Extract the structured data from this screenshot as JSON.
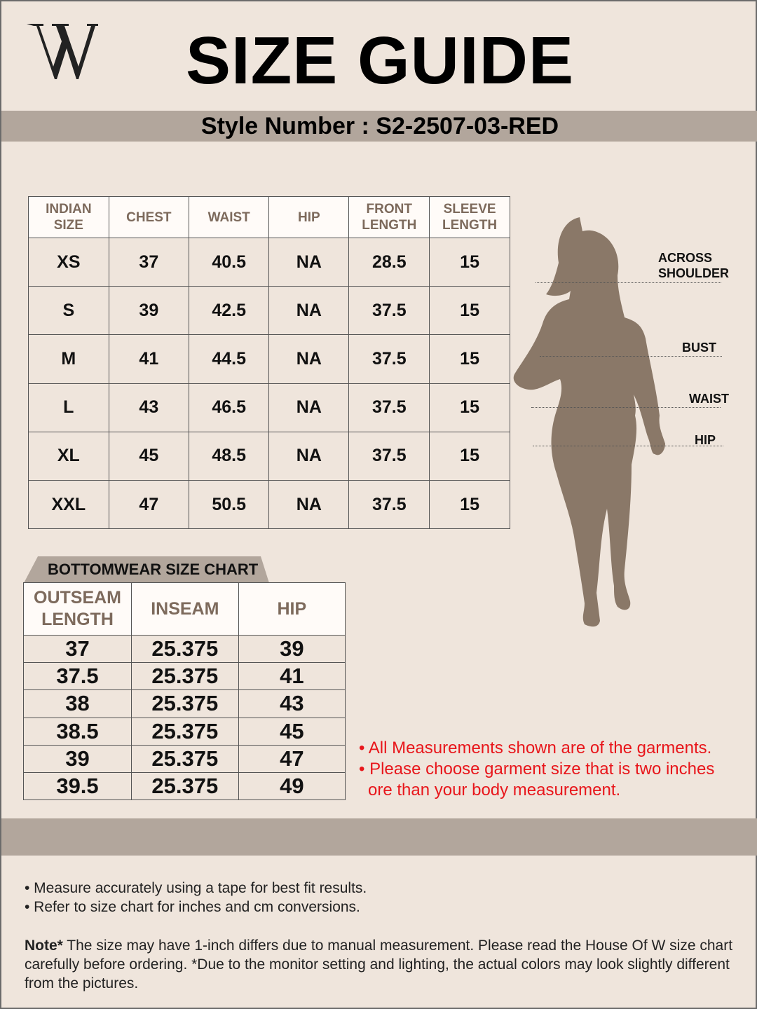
{
  "logo": {
    "letter": "W"
  },
  "header": {
    "title": "SIZE GUIDE",
    "style_number": "Style Number : S2-2507-03-RED"
  },
  "topwear": {
    "columns": [
      "INDIAN SIZE",
      "CHEST",
      "WAIST",
      "HIP",
      "FRONT LENGTH",
      "SLEEVE LENGTH"
    ],
    "rows": [
      [
        "XS",
        "37",
        "40.5",
        "NA",
        "28.5",
        "15"
      ],
      [
        "S",
        "39",
        "42.5",
        "NA",
        "37.5",
        "15"
      ],
      [
        "M",
        "41",
        "44.5",
        "NA",
        "37.5",
        "15"
      ],
      [
        "L",
        "43",
        "46.5",
        "NA",
        "37.5",
        "15"
      ],
      [
        "XL",
        "45",
        "48.5",
        "NA",
        "37.5",
        "15"
      ],
      [
        "XXL",
        "47",
        "50.5",
        "NA",
        "37.5",
        "15"
      ]
    ]
  },
  "bottomwear": {
    "title": "BOTTOMWEAR SIZE CHART",
    "columns": [
      "OUTSEAM LENGTH",
      "INSEAM",
      "HIP"
    ],
    "rows": [
      [
        "37",
        "25.375",
        "39"
      ],
      [
        "37.5",
        "25.375",
        "41"
      ],
      [
        "38",
        "25.375",
        "43"
      ],
      [
        "38.5",
        "25.375",
        "45"
      ],
      [
        "39",
        "25.375",
        "47"
      ],
      [
        "39.5",
        "25.375",
        "49"
      ]
    ]
  },
  "figure": {
    "labels": [
      "ACROSS SHOULDER",
      "BUST",
      "WAIST",
      "HIP"
    ]
  },
  "notes_red": [
    "• All Measurements shown are of the garments.",
    "• Please choose garment size that is two inches",
    "ore than your body measurement."
  ],
  "footer": {
    "bullets": [
      "• Measure accurately using a tape for best fit results.",
      "• Refer to size chart for inches and cm conversions."
    ],
    "note_label": "Note*",
    "note_text": " The size may have 1-inch differs due to manual measurement. Please read the House Of W size chart carefully before ordering. *Due to the monitor setting and lighting, the actual colors may look slightly different from the pictures."
  },
  "colors": {
    "background": "#efe5dc",
    "band": "#b2a69c",
    "header_text": "#7d6a5c",
    "silhouette": "#8a7868",
    "notice_red": "#e8161b"
  }
}
